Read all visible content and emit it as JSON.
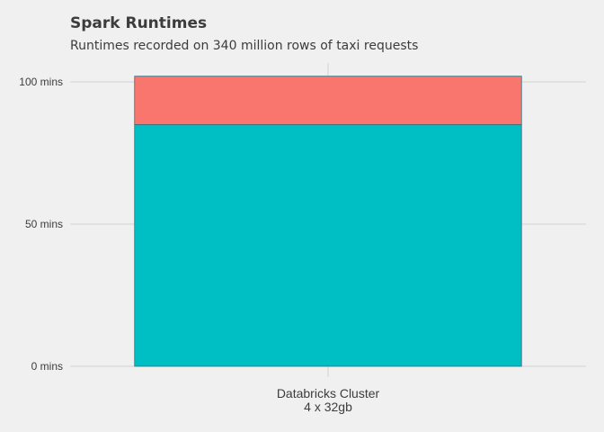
{
  "chart_data": {
    "type": "bar",
    "stacked": true,
    "title": "Spark Runtimes",
    "subtitle": "Runtimes recorded on 340 million rows of taxi requests",
    "categories": [
      [
        "Databricks Cluster",
        "4 x 32gb"
      ]
    ],
    "series": [
      {
        "values": [
          85
        ],
        "color": "#00bfc4"
      },
      {
        "values": [
          17
        ],
        "color": "#f8766d"
      }
    ],
    "y_ticks": [
      {
        "value": 0,
        "label": "0 mins"
      },
      {
        "value": 50,
        "label": "50 mins"
      },
      {
        "value": 100,
        "label": "100 mins"
      }
    ],
    "ylim": [
      0,
      102
    ],
    "grid": true,
    "legend": "none"
  }
}
